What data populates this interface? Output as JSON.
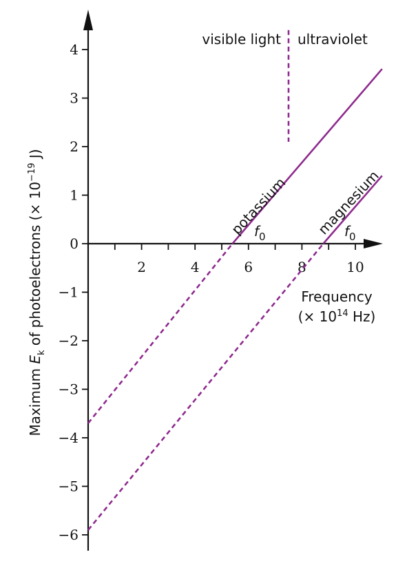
{
  "chart_data": {
    "type": "line",
    "title": "",
    "x_axis": {
      "label_line1": "Frequency",
      "label_line2": "(× 10",
      "label_line2_sup": "14",
      "label_line2_end": " Hz)",
      "range": [
        0,
        11
      ],
      "ticks": [
        1,
        2,
        3,
        4,
        5,
        6,
        7,
        8,
        9,
        10
      ],
      "tick_labels": [
        "2",
        "4",
        "6",
        "8",
        "10"
      ]
    },
    "y_axis": {
      "label_prefix": "Maximum ",
      "label_E": "E",
      "label_k": "k",
      "label_mid": " of photoelectrons (× 10",
      "label_sup": "−19",
      "label_end": " J)",
      "range": [
        -6.5,
        4.5
      ],
      "ticks": [
        -6,
        -5,
        -4,
        -3,
        -2,
        -1,
        0,
        1,
        2,
        3,
        4
      ],
      "tick_labels": [
        "−6",
        "−5",
        "−4",
        "−3",
        "−2",
        "−1",
        "0",
        "1",
        "2",
        "3",
        "4"
      ]
    },
    "series": [
      {
        "name": "potassium",
        "threshold_frequency": 5.4,
        "y_intercept": -3.7,
        "solid": {
          "x": [
            5.4,
            11.0
          ],
          "y": [
            0.0,
            3.6
          ]
        },
        "dashed": {
          "x": [
            0.0,
            5.4
          ],
          "y": [
            -3.7,
            0.0
          ]
        }
      },
      {
        "name": "magnesium",
        "threshold_frequency": 8.8,
        "y_intercept": -5.9,
        "solid": {
          "x": [
            8.8,
            11.0
          ],
          "y": [
            0.0,
            1.4
          ]
        },
        "dashed": {
          "x": [
            0.0,
            8.8
          ],
          "y": [
            -5.9,
            0.0
          ]
        }
      }
    ],
    "threshold_label": "f",
    "threshold_label_sub": "0",
    "boundary": {
      "x": 7.5,
      "y": [
        2.1,
        4.4
      ]
    },
    "annotations": {
      "visible": "visible light",
      "ultraviolet": "ultraviolet"
    },
    "colors": {
      "series": "#8e2a8e",
      "axis": "#111111"
    }
  }
}
